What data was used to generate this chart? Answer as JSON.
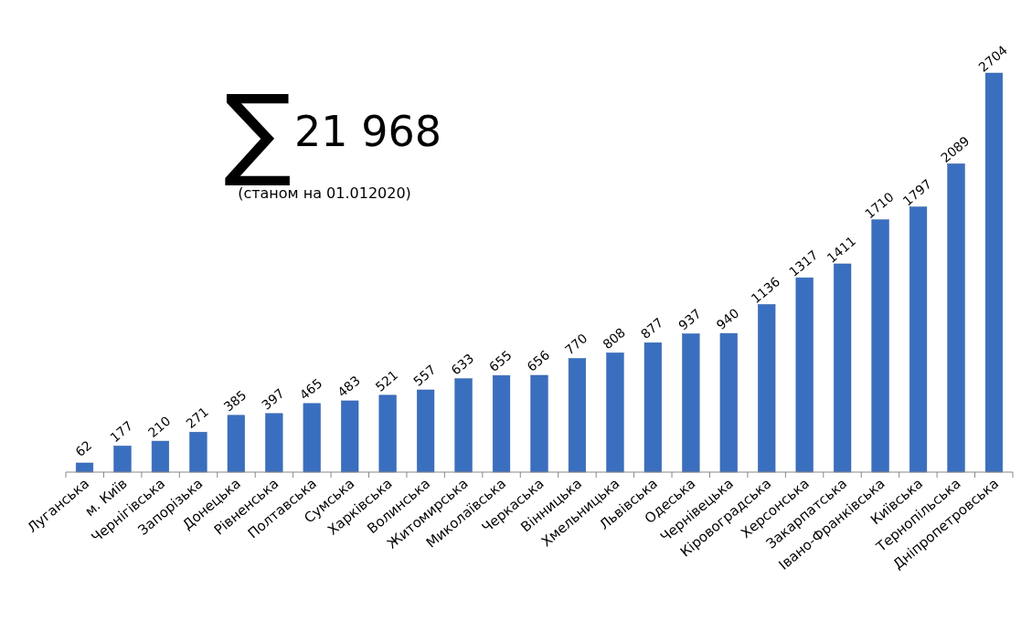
{
  "chart_data": {
    "type": "bar",
    "categories": [
      "Луганська",
      "м. Київ",
      "Чернігівська",
      "Запорізька",
      "Донецька",
      "Рівненська",
      "Полтавська",
      "Сумська",
      "Харківська",
      "Волинська",
      "Житомирська",
      "Миколаївська",
      "Черкаська",
      "Вінницька",
      "Хмельницька",
      "Львівська",
      "Одеська",
      "Чернівецька",
      "Кіровоградська",
      "Херсонська",
      "Закарпатська",
      "Івано-Франківська",
      "Київська",
      "Тернопільська",
      "Дніпропетровська"
    ],
    "values": [
      62,
      177,
      210,
      271,
      385,
      397,
      465,
      483,
      521,
      557,
      633,
      655,
      656,
      770,
      808,
      877,
      937,
      940,
      1136,
      1317,
      1411,
      1710,
      1797,
      2089,
      2704
    ],
    "color": "#3a6fc0",
    "data_labels": true,
    "annotations": [
      "∑",
      "21 968",
      "(станом на 01.012020)"
    ]
  }
}
